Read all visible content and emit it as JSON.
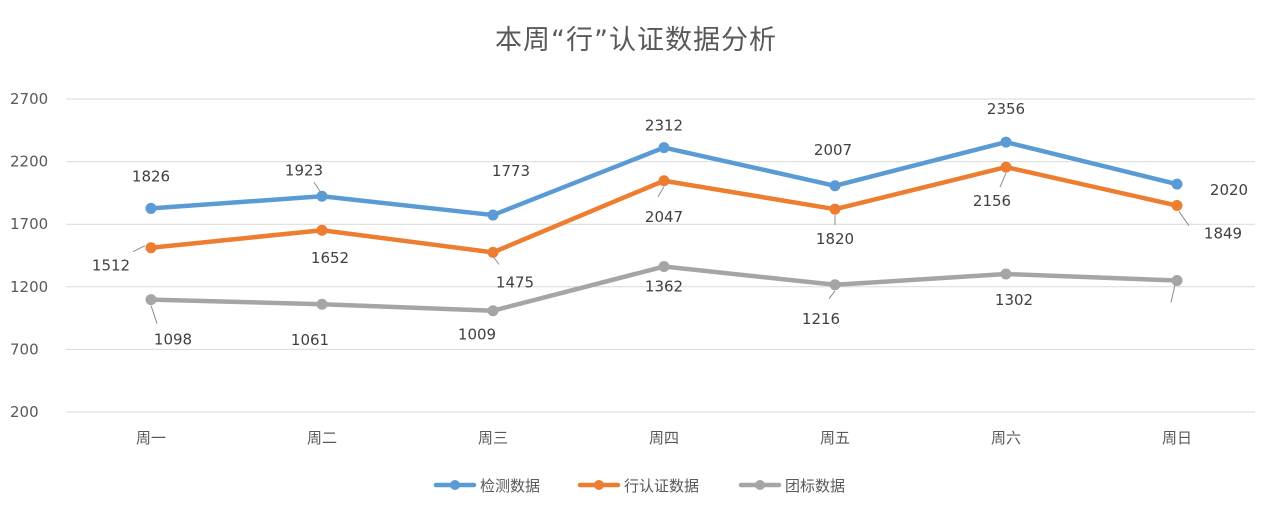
{
  "chart_data": {
    "type": "line",
    "title": "本周“行”认证数据分析",
    "xlabel": "",
    "ylabel": "",
    "categories": [
      "周一",
      "周二",
      "周三",
      "周四",
      "周五",
      "周六",
      "周日"
    ],
    "yticks": [
      200,
      700,
      1200,
      1700,
      2200,
      2700
    ],
    "ylim": [
      200,
      2700
    ],
    "grid": true,
    "legend_position": "bottom",
    "series": [
      {
        "name": "检测数据",
        "color": "#5b9bd5",
        "values": [
          1826,
          1923,
          1773,
          2312,
          2007,
          2356,
          2020
        ],
        "label_values": [
          "1826",
          "1923",
          "1773",
          "2312",
          "2007",
          "2356",
          "2020"
        ]
      },
      {
        "name": "行认证数据",
        "color": "#ed7d31",
        "values": [
          1512,
          1652,
          1475,
          2047,
          1820,
          2156,
          1849
        ],
        "label_values": [
          "1512",
          "1652",
          "1475",
          "2047",
          "1820",
          "2156",
          "1849"
        ]
      },
      {
        "name": "团标数据",
        "color": "#a5a5a5",
        "values": [
          1098,
          1061,
          1009,
          1362,
          1216,
          1302,
          1250
        ],
        "label_values": [
          "1098",
          "1061",
          "1009",
          "1362",
          "1216",
          "1302",
          ""
        ]
      }
    ]
  }
}
